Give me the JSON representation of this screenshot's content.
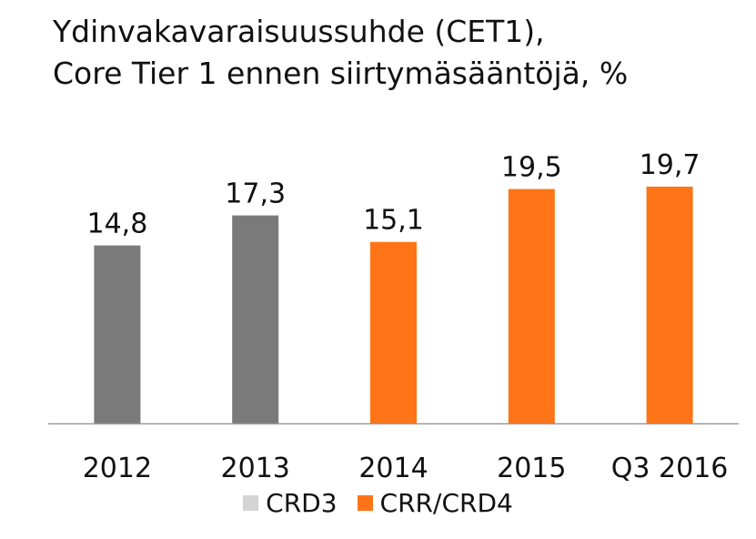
{
  "chart_data": {
    "type": "bar",
    "title": "Ydinvakavaraisuussuhde (CET1),",
    "subtitle": "Core Tier 1 ennen siirtymäsääntöjä, %",
    "xlabel": "",
    "ylabel": "",
    "categories": [
      "2012",
      "2013",
      "2014",
      "2015",
      "Q3 2016"
    ],
    "values": [
      14.8,
      17.3,
      15.1,
      19.5,
      19.7
    ],
    "value_labels": [
      "14,8",
      "17,3",
      "15,1",
      "19,5",
      "19,7"
    ],
    "series_of_bar": [
      0,
      0,
      1,
      1,
      1
    ],
    "series": [
      {
        "name": "CRD3",
        "color": "#d4d4d4",
        "bar_color": "#7a7a7a"
      },
      {
        "name": "CRR/CRD4",
        "color": "#ff7417",
        "bar_color": "#ff7417"
      }
    ],
    "ylim": [
      0,
      22
    ],
    "grid": false,
    "legend_position": "bottom"
  }
}
